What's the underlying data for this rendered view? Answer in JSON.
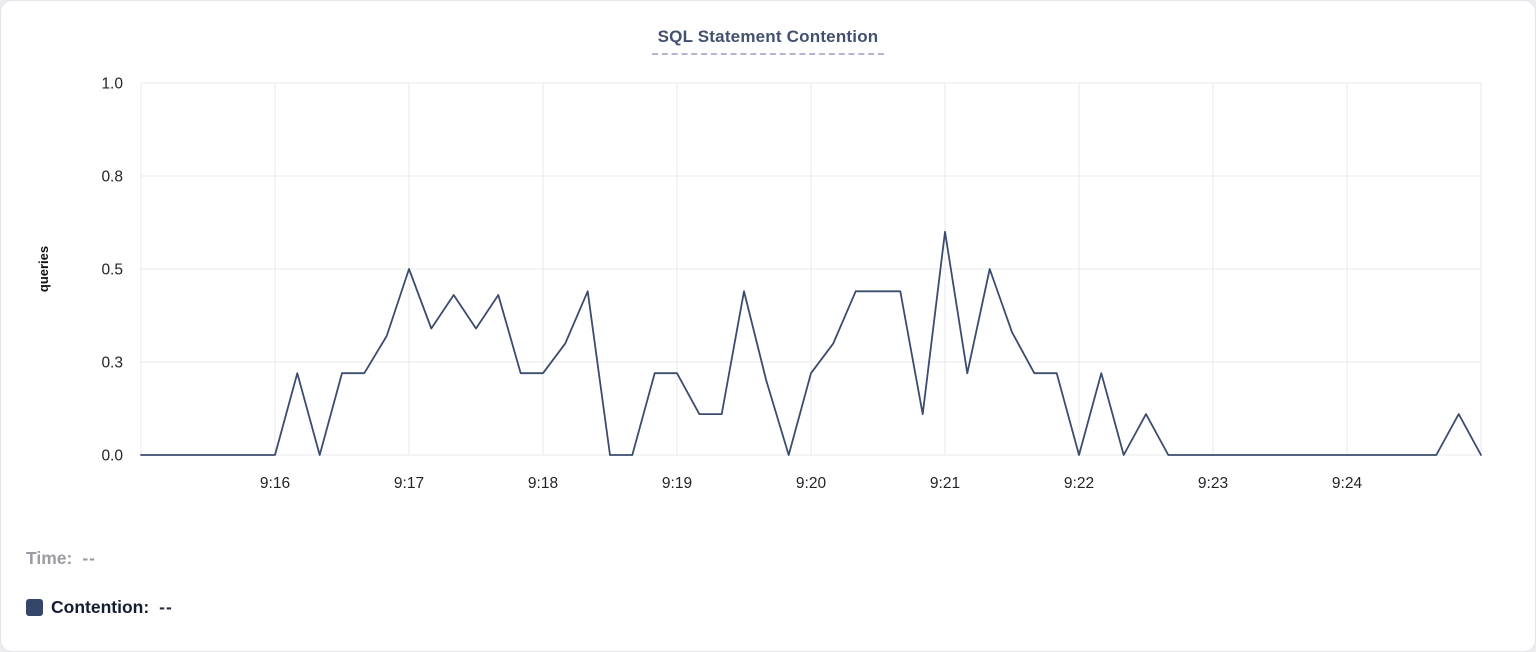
{
  "chart": {
    "title": "SQL Statement Contention"
  },
  "legend": {
    "time_label": "Time:",
    "time_value": "--",
    "contention_label": "Contention:",
    "contention_value": "--",
    "swatch_color": "#35466b"
  },
  "chart_data": {
    "type": "line",
    "title": "SQL Statement Contention",
    "xlabel": "",
    "ylabel": "queries",
    "ylim": [
      0,
      1.0
    ],
    "grid": true,
    "legend_position": "below",
    "line_color": "#3c4c6e",
    "x_interval_seconds": 10,
    "x": [
      "9:15:00",
      "9:15:10",
      "9:15:20",
      "9:15:30",
      "9:15:40",
      "9:15:50",
      "9:16:00",
      "9:16:10",
      "9:16:20",
      "9:16:30",
      "9:16:40",
      "9:16:50",
      "9:17:00",
      "9:17:10",
      "9:17:20",
      "9:17:30",
      "9:17:40",
      "9:17:50",
      "9:18:00",
      "9:18:10",
      "9:18:20",
      "9:18:30",
      "9:18:40",
      "9:18:50",
      "9:19:00",
      "9:19:10",
      "9:19:20",
      "9:19:30",
      "9:19:40",
      "9:19:50",
      "9:20:00",
      "9:20:10",
      "9:20:20",
      "9:20:30",
      "9:20:40",
      "9:20:50",
      "9:21:00",
      "9:21:10",
      "9:21:20",
      "9:21:30",
      "9:21:40",
      "9:21:50",
      "9:22:00",
      "9:22:10",
      "9:22:20",
      "9:22:30",
      "9:22:40",
      "9:22:50",
      "9:23:00",
      "9:23:10",
      "9:23:20",
      "9:23:30",
      "9:23:40",
      "9:23:50",
      "9:24:00",
      "9:24:10",
      "9:24:20",
      "9:24:30",
      "9:24:40",
      "9:24:50",
      "9:25:00"
    ],
    "series": [
      {
        "name": "Contention",
        "values": [
          0,
          0,
          0,
          0,
          0,
          0,
          0,
          0.22,
          0,
          0.22,
          0.22,
          0.32,
          0.5,
          0.34,
          0.43,
          0.34,
          0.43,
          0.22,
          0.22,
          0.3,
          0.44,
          0,
          0,
          0.22,
          0.22,
          0.11,
          0.11,
          0.44,
          0.2,
          0,
          0.22,
          0.3,
          0.44,
          0.44,
          0.44,
          0.11,
          0.6,
          0.22,
          0.5,
          0.33,
          0.22,
          0.22,
          0,
          0.22,
          0,
          0.11,
          0,
          0,
          0,
          0,
          0,
          0,
          0,
          0,
          0,
          0,
          0,
          0,
          0,
          0.11,
          0
        ]
      }
    ],
    "yticks": [
      {
        "value": 0,
        "label": "0.0"
      },
      {
        "value": 0.25,
        "label": "0.3"
      },
      {
        "value": 0.5,
        "label": "0.5"
      },
      {
        "value": 0.75,
        "label": "0.8"
      },
      {
        "value": 1.0,
        "label": "1.0"
      }
    ],
    "xticks": [
      {
        "index": 6,
        "label": "9:16"
      },
      {
        "index": 12,
        "label": "9:17"
      },
      {
        "index": 18,
        "label": "9:18"
      },
      {
        "index": 24,
        "label": "9:19"
      },
      {
        "index": 30,
        "label": "9:20"
      },
      {
        "index": 36,
        "label": "9:21"
      },
      {
        "index": 42,
        "label": "9:22"
      },
      {
        "index": 48,
        "label": "9:23"
      },
      {
        "index": 54,
        "label": "9:24"
      }
    ]
  }
}
